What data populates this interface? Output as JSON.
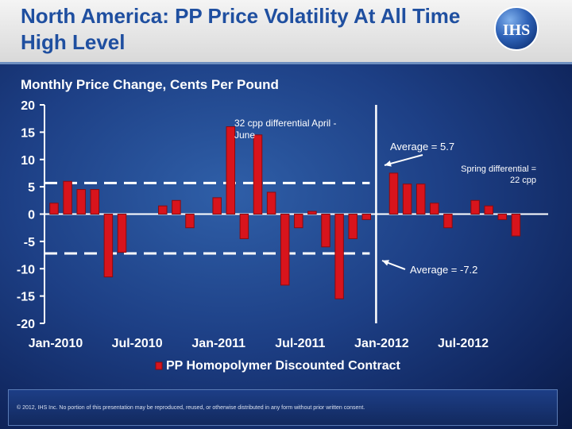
{
  "slide": {
    "title": "North America:  PP Price Volatility At All Time High Level"
  },
  "logo": {
    "text": "IHS"
  },
  "colors": {
    "title": "#1f4fa0",
    "bar": "#d8141c",
    "bar_dark": "#8a0a0f",
    "axis": "#ffffff",
    "average_line": "#ffffff",
    "background": "#1d3f85"
  },
  "chart_data": {
    "type": "bar",
    "title": "Monthly Price Change, Cents Per Pound",
    "xlabel": "",
    "ylabel": "",
    "ylim": [
      -20,
      20
    ],
    "y_ticks": [
      20,
      15,
      10,
      5,
      0,
      -5,
      -10,
      -15,
      -20
    ],
    "x_tick_labels": [
      {
        "label": "Jan-2010",
        "index": 0
      },
      {
        "label": "Jul-2010",
        "index": 6
      },
      {
        "label": "Jan-2011",
        "index": 12
      },
      {
        "label": "Jul-2011",
        "index": 18
      },
      {
        "label": "Jan-2012",
        "index": 24
      },
      {
        "label": "Jul-2012",
        "index": 30
      }
    ],
    "categories": [
      "Jan-2010",
      "Feb-2010",
      "Mar-2010",
      "Apr-2010",
      "May-2010",
      "Jun-2010",
      "Jul-2010",
      "Aug-2010",
      "Sep-2010",
      "Oct-2010",
      "Nov-2010",
      "Dec-2010",
      "Jan-2011",
      "Feb-2011",
      "Mar-2011",
      "Apr-2011",
      "May-2011",
      "Jun-2011",
      "Jul-2011",
      "Aug-2011",
      "Sep-2011",
      "Oct-2011",
      "Nov-2011",
      "Dec-2011",
      "Jan-2012",
      "Feb-2012",
      "Mar-2012",
      "Apr-2012",
      "May-2012",
      "Jun-2012",
      "Jul-2012",
      "Aug-2012",
      "Sep-2012",
      "Oct-2012",
      "Nov-2012",
      "Dec-2012"
    ],
    "series": [
      {
        "name": "PP Homopolymer Discounted Contract",
        "values": [
          2,
          6,
          4.5,
          4.5,
          -11.5,
          -7,
          0,
          0,
          1.5,
          2.5,
          -2.5,
          0,
          3,
          16,
          -4.5,
          14.5,
          4,
          -13,
          -2.5,
          0.5,
          -6,
          -15.5,
          -4.5,
          -1,
          0,
          7.5,
          5.5,
          5.5,
          2,
          -2.5,
          0,
          2.5,
          1.5,
          -1,
          -4,
          0
        ]
      }
    ],
    "reference_lines": [
      {
        "label": "Average = 5.7",
        "value": 5.7,
        "from_index": 0,
        "to_index": 24
      },
      {
        "label": "Average = -7.2",
        "value": -7.2,
        "from_index": 0,
        "to_index": 24
      }
    ],
    "divider_index": 24,
    "annotations": [
      {
        "text": "32 cpp differential April - June"
      },
      {
        "text": "Spring differential = 22 cpp"
      }
    ],
    "legend": {
      "label": "PP Homopolymer Discounted Contract",
      "placement": "bottom"
    }
  },
  "footer": {
    "copyright": "© 2012, IHS Inc. No portion of this presentation may be reproduced, reused, or otherwise distributed in any form without prior written consent."
  }
}
